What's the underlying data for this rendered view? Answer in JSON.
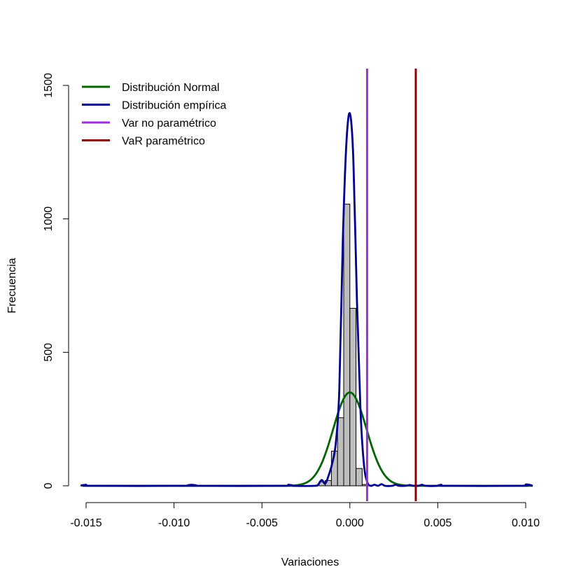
{
  "chart_data": {
    "type": "histogram",
    "title": "",
    "xlabel": "Variaciones",
    "ylabel": "Frecuencia",
    "xlim": [
      -0.0152,
      0.0104
    ],
    "ylim": [
      0,
      1500
    ],
    "x_ticks": [
      {
        "value": -0.015,
        "label": "-0.015"
      },
      {
        "value": -0.01,
        "label": "-0.010"
      },
      {
        "value": -0.005,
        "label": "-0.005"
      },
      {
        "value": 0.0,
        "label": "0.000"
      },
      {
        "value": 0.005,
        "label": "0.005"
      },
      {
        "value": 0.01,
        "label": "0.010"
      }
    ],
    "y_ticks": [
      {
        "value": 0,
        "label": "0"
      },
      {
        "value": 500,
        "label": "500"
      },
      {
        "value": 1000,
        "label": "1000"
      },
      {
        "value": 1500,
        "label": "1500"
      }
    ],
    "bin_width": 0.00035,
    "bins": [
      {
        "x0": -0.00175,
        "x1": -0.0014,
        "count": 15
      },
      {
        "x0": -0.0014,
        "x1": -0.00105,
        "count": 20
      },
      {
        "x0": -0.00105,
        "x1": -0.0007,
        "count": 130
      },
      {
        "x0": -0.0007,
        "x1": -0.00035,
        "count": 255
      },
      {
        "x0": -0.00035,
        "x1": 0.0,
        "count": 1055
      },
      {
        "x0": 0.0,
        "x1": 0.00035,
        "count": 665
      },
      {
        "x0": 0.00035,
        "x1": 0.0007,
        "count": 65
      },
      {
        "x0": 0.0007,
        "x1": 0.00105,
        "count": 5
      }
    ],
    "normal_curve": {
      "mean": 0.0,
      "sd": 0.00095,
      "peak": 350
    },
    "empirical_curve": {
      "x": [
        -0.0152,
        -0.015,
        -0.0148,
        -0.0092,
        -0.009,
        -0.0088,
        -0.0037,
        -0.0035,
        -0.0033,
        -0.002,
        -0.0018,
        -0.0016,
        -0.0014,
        -0.0012,
        -0.001,
        -0.0008,
        -0.0006,
        -0.0004,
        -0.0002,
        0.0,
        0.0002,
        0.0004,
        0.0006,
        0.0008,
        0.001,
        0.0012,
        0.0014,
        0.0016,
        0.0018,
        0.002,
        0.0024,
        0.0026,
        0.0028,
        0.0032,
        0.0034,
        0.0036,
        0.0039,
        0.0041,
        0.0043,
        0.005,
        0.0052,
        0.0054,
        0.0098,
        0.01,
        0.0102,
        0.0104
      ],
      "y": [
        0,
        4,
        0,
        0,
        4,
        0,
        0,
        4,
        0,
        0,
        5,
        22,
        8,
        40,
        85,
        160,
        360,
        920,
        1280,
        1395,
        1220,
        700,
        290,
        80,
        12,
        0,
        4,
        0,
        6,
        0,
        0,
        4,
        0,
        0,
        3,
        0,
        0,
        4,
        0,
        0,
        4,
        0,
        0,
        5,
        4,
        0
      ]
    },
    "vlines": [
      {
        "name": "Var no paramétrico",
        "x": 0.00098,
        "color": "#9b30d9"
      },
      {
        "name": "VaR paramétrico",
        "x": 0.00375,
        "color": "#8b0000"
      }
    ],
    "legend": {
      "placement": "top-left",
      "entries": [
        {
          "label": "Distribución Normal",
          "color": "#006400"
        },
        {
          "label": "Distribución empírica",
          "color": "#00008b"
        },
        {
          "label": "Var no paramétrico",
          "color": "#9b30d9"
        },
        {
          "label": "VaR paramétrico",
          "color": "#8b0000"
        }
      ]
    },
    "colors": {
      "bar_fill": "#bebebe",
      "bar_stroke": "#000000",
      "normal": "#006400",
      "empirical": "#00008b"
    }
  }
}
